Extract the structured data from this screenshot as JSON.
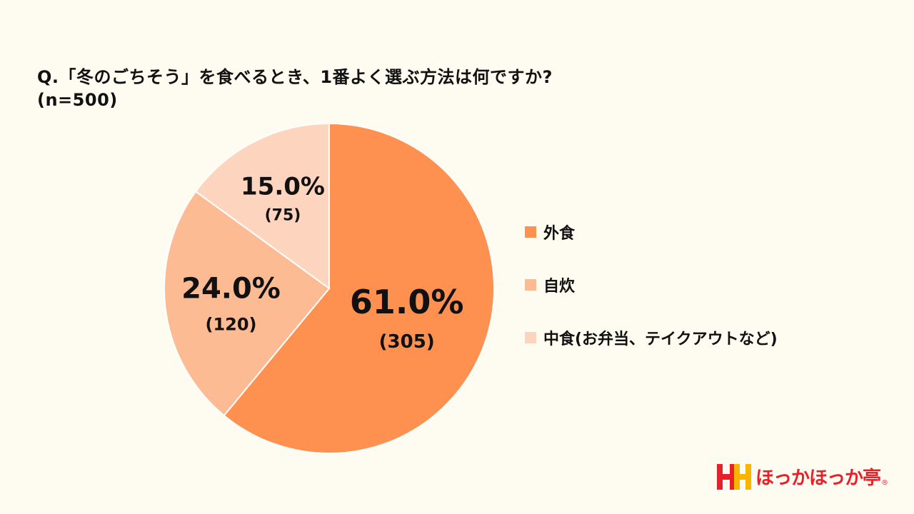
{
  "title": {
    "line1": "Q.「冬のごちそう」を食べるとき、1番よく選ぶ方法は何ですか?",
    "line2": "(n=500)"
  },
  "chart_data": {
    "type": "pie",
    "title": "Q.「冬のごちそう」を食べるとき、1番よく選ぶ方法は何ですか? (n=500)",
    "start_angle_deg": 0,
    "direction": "clockwise",
    "slices": [
      {
        "label": "外食",
        "percent": 61.0,
        "percent_label": "61.0%",
        "count": 305,
        "count_label": "(305)",
        "color": "#fe9150"
      },
      {
        "label": "自炊",
        "percent": 24.0,
        "percent_label": "24.0%",
        "count": 120,
        "count_label": "(120)",
        "color": "#fdbb94"
      },
      {
        "label": "中食(お弁当、テイクアウトなど)",
        "percent": 15.0,
        "percent_label": "15.0%",
        "count": 75,
        "count_label": "(75)",
        "color": "#fdd5bf"
      }
    ],
    "legend_position": "right",
    "slice_border_color": "#ffffff"
  },
  "legend": {
    "items": [
      {
        "label": "外食",
        "color": "#fe9150"
      },
      {
        "label": "自炊",
        "color": "#fdbb94"
      },
      {
        "label": "中食(お弁当、テイクアウトなど)",
        "color": "#fdd5bf"
      }
    ]
  },
  "brand": {
    "name": "ほっかほっか亭",
    "registered_mark": "®",
    "colors": {
      "red": "#e8202a",
      "yellow": "#f7b500"
    }
  },
  "background_color": "#fefcf0"
}
